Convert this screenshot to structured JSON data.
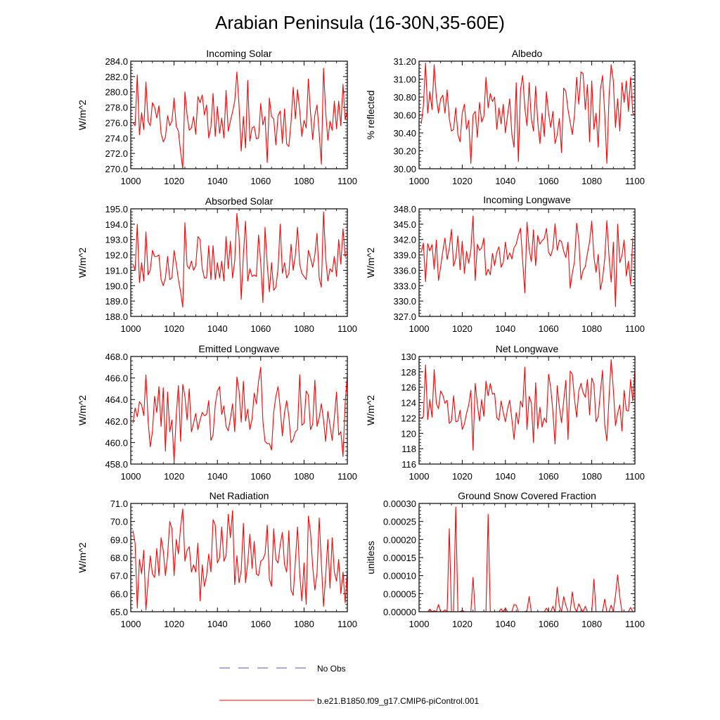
{
  "figure": {
    "title": "Arabian Peninsula (16-30N,35-60E)",
    "line_color": "#ff0000",
    "obs_color": "#5555cc"
  },
  "legend": {
    "obs_label": "No Obs",
    "model_label": "b.e21.B1850.f09_g17.CMIP6-piControl.001"
  },
  "chart_data": [
    {
      "type": "line",
      "title": "Incoming Solar",
      "ylabel": "W/m^2",
      "xlim": [
        1000,
        1100
      ],
      "ylim": [
        270,
        284
      ],
      "xticks": [
        1000,
        1020,
        1040,
        1060,
        1080,
        1100
      ],
      "yticks": [
        270.0,
        272.0,
        274.0,
        276.0,
        278.0,
        280.0,
        282.0,
        284.0
      ],
      "ytick_labels": [
        "270.0",
        "272.0",
        "274.0",
        "276.0",
        "278.0",
        "280.0",
        "282.0",
        "284.0"
      ],
      "x_start": 1001,
      "values": [
        276,
        275.6,
        282.2,
        274.4,
        277.3,
        275.1,
        281.3,
        276.2,
        275.6,
        278.6,
        278.0,
        276.6,
        278.2,
        274.6,
        273.5,
        274.1,
        276.9,
        275.6,
        276.2,
        279.2,
        275.5,
        274.9,
        272.2,
        270.0,
        280.0,
        277.0,
        275.0,
        275.3,
        276.8,
        274.5,
        279.4,
        278.6,
        279.6,
        277.0,
        278.3,
        274.0,
        275.4,
        279.8,
        274.2,
        278.1,
        274.6,
        276.6,
        274.0,
        280.2,
        274.9,
        276.2,
        277.4,
        278.8,
        282.6,
        278.2,
        272.3,
        276.8,
        272.7,
        281.5,
        273.6,
        275.3,
        275.5,
        273.9,
        274.0,
        278.5,
        275.7,
        276.8,
        270.8,
        279.2,
        276.8,
        276.5,
        273.1,
        276.9,
        277.5,
        273.3,
        277.8,
        273.2,
        272.9,
        276.1,
        280.6,
        276.5,
        280.3,
        277.6,
        274.2,
        276.3,
        275.3,
        281.7,
        277.3,
        273.8,
        277.0,
        278.3,
        274.6,
        270.6,
        283.1,
        277.4,
        273.7,
        276.2,
        275.0,
        278.8,
        275.2,
        278.8,
        275.6,
        281.0,
        276.4,
        277.4
      ]
    },
    {
      "type": "line",
      "title": "Albedo",
      "ylabel": "% reflected",
      "xlim": [
        1000,
        1100
      ],
      "ylim": [
        30.0,
        31.2
      ],
      "xticks": [
        1000,
        1020,
        1040,
        1060,
        1080,
        1100
      ],
      "yticks": [
        30.0,
        30.2,
        30.4,
        30.6,
        30.8,
        31.0,
        31.2
      ],
      "ytick_labels": [
        "30.00",
        "30.20",
        "30.40",
        "30.60",
        "30.80",
        "31.00",
        "31.20"
      ],
      "x_start": 1001,
      "values": [
        30.5,
        30.7,
        31.18,
        30.62,
        30.86,
        30.66,
        31.16,
        30.8,
        30.62,
        30.78,
        30.82,
        30.62,
        30.88,
        30.56,
        30.42,
        30.44,
        30.68,
        30.38,
        30.3,
        30.62,
        30.72,
        30.44,
        30.54,
        30.06,
        30.6,
        30.64,
        30.35,
        30.74,
        30.52,
        30.58,
        31.02,
        30.68,
        30.84,
        30.75,
        30.8,
        30.44,
        30.68,
        30.5,
        30.72,
        30.4,
        30.6,
        30.78,
        30.38,
        30.24,
        30.96,
        30.08,
        30.88,
        31.04,
        30.68,
        30.48,
        30.96,
        30.56,
        30.42,
        30.92,
        30.52,
        30.28,
        30.62,
        30.36,
        30.86,
        30.62,
        30.46,
        30.64,
        30.28,
        30.38,
        30.56,
        30.18,
        30.9,
        30.86,
        30.66,
        30.52,
        30.38,
        30.6,
        31.02,
        30.72,
        31.08,
        31.06,
        30.66,
        30.94,
        30.3,
        30.98,
        30.44,
        30.62,
        30.24,
        30.88,
        31.04,
        30.62,
        30.06,
        30.8,
        31.16,
        30.98,
        30.46,
        30.78,
        30.42,
        30.96,
        30.74,
        30.98,
        30.64,
        31.02,
        30.62,
        30.6
      ]
    },
    {
      "type": "line",
      "title": "Absorbed Solar",
      "ylabel": "W/m^2",
      "xlim": [
        1000,
        1100
      ],
      "ylim": [
        188,
        195
      ],
      "xticks": [
        1000,
        1020,
        1040,
        1060,
        1080,
        1100
      ],
      "yticks": [
        188.0,
        189.0,
        190.0,
        191.0,
        192.0,
        193.0,
        194.0,
        195.0
      ],
      "ytick_labels": [
        "188.0",
        "189.0",
        "190.0",
        "191.0",
        "192.0",
        "193.0",
        "194.0",
        "195.0"
      ],
      "x_start": 1001,
      "values": [
        191.4,
        191.0,
        194.0,
        190.2,
        191.5,
        190.3,
        193.5,
        190.7,
        191.0,
        192.3,
        191.9,
        191.9,
        192.0,
        190.4,
        190.0,
        190.5,
        191.9,
        190.4,
        190.5,
        192.3,
        191.4,
        190.4,
        189.6,
        188.6,
        194.1,
        191.3,
        191.1,
        191.6,
        191.0,
        191.3,
        193.2,
        193.0,
        191.1,
        190.5,
        190.5,
        192.6,
        190.4,
        192.6,
        190.4,
        191.5,
        190.5,
        191.6,
        190.3,
        193.2,
        191.1,
        192.9,
        190.5,
        191.6,
        194.7,
        193.1,
        189.1,
        192.0,
        194.2,
        190.3,
        191.1,
        190.6,
        190.7,
        190.6,
        193.3,
        191.5,
        188.9,
        193.8,
        191.4,
        189.6,
        191.5,
        189.7,
        189.9,
        191.1,
        194.0,
        190.8,
        191.5,
        190.5,
        190.8,
        192.7,
        191.0,
        192.0,
        193.8,
        191.4,
        190.8,
        190.6,
        190.4,
        192.3,
        191.8,
        191.2,
        192.0,
        193.4,
        190.5,
        189.9,
        194.8,
        191.8,
        190.3,
        191.1,
        190.9,
        191.9,
        190.6,
        193.0,
        191.4,
        193.7,
        191.9,
        192.1
      ]
    },
    {
      "type": "line",
      "title": "Incoming Longwave",
      "ylabel": "W/m^2",
      "xlim": [
        1000,
        1100
      ],
      "ylim": [
        327,
        348
      ],
      "xticks": [
        1000,
        1020,
        1040,
        1060,
        1080,
        1100
      ],
      "yticks": [
        327.0,
        330.0,
        333.0,
        336.0,
        339.0,
        342.0,
        345.0,
        348.0
      ],
      "ytick_labels": [
        "327.0",
        "330.0",
        "333.0",
        "336.0",
        "339.0",
        "342.0",
        "345.0",
        "348.0"
      ],
      "x_start": 1001,
      "values": [
        339.5,
        341.3,
        333.8,
        341.2,
        339.8,
        341.0,
        336.2,
        341.9,
        334.0,
        336.7,
        339.7,
        342.3,
        338.1,
        340.3,
        344.0,
        336.8,
        338.3,
        342.7,
        336.1,
        341.7,
        335.4,
        339.7,
        337.4,
        340.0,
        346.6,
        334.0,
        341.1,
        339.9,
        340.4,
        342.3,
        335.0,
        336.2,
        335.1,
        339.3,
        336.9,
        339.5,
        340.6,
        336.6,
        337.5,
        341.5,
        338.1,
        339.4,
        338.2,
        340.4,
        341.1,
        342.9,
        344.2,
        337.8,
        331.6,
        345.4,
        340.1,
        337.7,
        343.9,
        336.9,
        342.8,
        341.1,
        341.8,
        342.2,
        344.2,
        339.5,
        338.8,
        340.3,
        345.1,
        339.9,
        341.9,
        341.6,
        339.7,
        338.5,
        341.5,
        332.5,
        335.4,
        337.7,
        345.2,
        341.9,
        334.2,
        336.0,
        336.7,
        339.3,
        341.6,
        345.6,
        338.6,
        335.6,
        339.1,
        332.2,
        334.3,
        338.2,
        345.7,
        338.7,
        333.7,
        341.5,
        328.9,
        345.0,
        337.5,
        338.9,
        341.9,
        334.9,
        337.8,
        333.2,
        342.3
      ]
    },
    {
      "type": "line",
      "title": "Emitted Longwave",
      "ylabel": "W/m^2",
      "xlim": [
        1000,
        1100
      ],
      "ylim": [
        458,
        468
      ],
      "xticks": [
        1000,
        1020,
        1040,
        1060,
        1080,
        1100
      ],
      "yticks": [
        458.0,
        460.0,
        462.0,
        464.0,
        466.0,
        468.0
      ],
      "ytick_labels": [
        "458.0",
        "460.0",
        "462.0",
        "464.0",
        "466.0",
        "468.0"
      ],
      "x_start": 1001,
      "values": [
        461.8,
        463.2,
        462.4,
        463.8,
        463.5,
        462.5,
        466.3,
        462.0,
        459.6,
        461.0,
        464.3,
        462.8,
        465.2,
        461.5,
        465.1,
        459.2,
        464.7,
        461.0,
        462.1,
        458.2,
        462.6,
        465.3,
        460.1,
        465.4,
        464.3,
        462.1,
        465.0,
        461.0,
        461.8,
        462.7,
        461.2,
        462.1,
        462.8,
        462.5,
        462.6,
        463.9,
        460.2,
        460.7,
        463.5,
        464.8,
        465.2,
        462.6,
        463.4,
        461.5,
        461.1,
        462.2,
        463.6,
        461.0,
        466.1,
        464.8,
        461.9,
        465.7,
        462.0,
        463.1,
        461.2,
        462.2,
        464.6,
        463.6,
        465.7,
        467.0,
        462.0,
        460.1,
        459.9,
        459.9,
        459.3,
        462.8,
        464.3,
        465.2,
        463.2,
        460.6,
        462.8,
        463.9,
        462.4,
        460.0,
        460.3,
        461.0,
        461.2,
        466.3,
        461.6,
        461.8,
        464.8,
        464.4,
        461.2,
        461.7,
        465.8,
        461.5,
        462.3,
        463.6,
        462.1,
        460.1,
        462.9,
        461.6,
        460.2,
        462.3,
        464.7,
        460.7,
        461.0,
        458.7,
        463.7,
        466.3
      ]
    },
    {
      "type": "line",
      "title": "Net Longwave",
      "ylabel": "W/m^2",
      "xlim": [
        1000,
        1100
      ],
      "ylim": [
        116,
        130
      ],
      "xticks": [
        1000,
        1020,
        1040,
        1060,
        1080,
        1100
      ],
      "yticks": [
        116,
        118,
        120,
        122,
        124,
        126,
        128,
        130
      ],
      "ytick_labels": [
        "116",
        "118",
        "120",
        "122",
        "124",
        "126",
        "128",
        "130"
      ],
      "x_start": 1001,
      "values": [
        121.9,
        122.2,
        128.9,
        121.8,
        124.4,
        122.1,
        128.3,
        123.9,
        123.2,
        125.5,
        125.0,
        123.9,
        124.3,
        121.3,
        121.6,
        124.9,
        121.5,
        121.6,
        123.0,
        120.5,
        121.2,
        122.6,
        123.7,
        125.6,
        117.8,
        126.5,
        123.8,
        121.6,
        124.4,
        122.2,
        126.8,
        124.9,
        126.5,
        125.1,
        125.2,
        122.0,
        121.7,
        124.2,
        122.7,
        121.5,
        123.2,
        124.3,
        121.8,
        119.2,
        122.7,
        121.2,
        124.2,
        123.4,
        128.6,
        120.5,
        124.8,
        124.0,
        118.8,
        126.6,
        120.6,
        123.4,
        120.8,
        122.0,
        121.4,
        127.7,
        125.9,
        122.8,
        118.6,
        126.2,
        123.4,
        121.4,
        124.2,
        126.9,
        119.2,
        128.1,
        127.7,
        124.5,
        122.1,
        125.5,
        126.5,
        125.3,
        124.7,
        127.0,
        122.4,
        127.2,
        126.4,
        121.5,
        122.2,
        125.4,
        128.2,
        121.1,
        119.0,
        124.6,
        129.6,
        125.7,
        121.0,
        122.6,
        123.7,
        120.3,
        125.6,
        123.0,
        122.9,
        127.0,
        124.2,
        128.2
      ]
    },
    {
      "type": "line",
      "title": "Net Radiation",
      "ylabel": "W/m^2",
      "xlim": [
        1000,
        1100
      ],
      "ylim": [
        65,
        71
      ],
      "xticks": [
        1000,
        1020,
        1040,
        1060,
        1080,
        1100
      ],
      "yticks": [
        65.0,
        66.0,
        67.0,
        68.0,
        69.0,
        70.0,
        71.0
      ],
      "ytick_labels": [
        "65.0",
        "66.0",
        "67.0",
        "68.0",
        "69.0",
        "70.0",
        "71.0"
      ],
      "x_start": 1001,
      "values": [
        69.5,
        68.8,
        65.2,
        67.9,
        67.1,
        68.4,
        65.1,
        66.7,
        68.1,
        67.1,
        66.9,
        68.5,
        67.0,
        69.1,
        68.4,
        67.0,
        68.1,
        70.0,
        69.6,
        67.0,
        69.0,
        68.2,
        69.7,
        70.7,
        67.8,
        68.4,
        68.6,
        67.2,
        67.6,
        67.2,
        68.8,
        65.6,
        67.6,
        66.4,
        67.0,
        68.2,
        67.2,
        70.1,
        69.8,
        67.7,
        68.0,
        69.7,
        67.8,
        68.1,
        70.4,
        69.1,
        70.6,
        66.5,
        68.1,
        66.6,
        67.3,
        69.9,
        66.6,
        67.7,
        69.3,
        67.4,
        68.9,
        67.1,
        67.0,
        67.8,
        67.9,
        68.2,
        69.8,
        66.8,
        66.4,
        69.6,
        67.9,
        67.7,
        68.7,
        69.4,
        67.6,
        67.2,
        69.5,
        66.2,
        65.9,
        67.8,
        69.7,
        67.1,
        65.6,
        67.7,
        65.4,
        70.3,
        69.4,
        67.5,
        66.2,
        67.1,
        70.2,
        67.7,
        65.3,
        67.0,
        69.0,
        66.3,
        69.1,
        67.2,
        66.7,
        67.9,
        66.0,
        67.2,
        65.5,
        67.3
      ]
    },
    {
      "type": "line",
      "title": "Ground Snow Covered Fraction",
      "ylabel": "unitless",
      "xlim": [
        1000,
        1100
      ],
      "ylim": [
        0,
        0.0003
      ],
      "xticks": [
        1000,
        1020,
        1040,
        1060,
        1080,
        1100
      ],
      "yticks": [
        0,
        5e-05,
        0.0001,
        0.00015,
        0.0002,
        0.00025,
        0.0003
      ],
      "ytick_labels": [
        "0.00000",
        "0.00005",
        "0.00010",
        "0.00015",
        "0.00020",
        "0.00025",
        "0.00030"
      ],
      "x_start": 1001,
      "values": [
        0,
        0,
        0,
        0,
        7e-06,
        0,
        3e-06,
        0,
        2e-05,
        0,
        0,
        5e-06,
        0,
        0.00023,
        0,
        0,
        0.00029,
        0,
        0,
        4e-06,
        0,
        0,
        0,
        0,
        9.5e-05,
        0,
        0,
        0,
        0,
        0,
        0,
        0.00027,
        0,
        0,
        0,
        0,
        0,
        8e-06,
        0,
        1e-05,
        0,
        0,
        0,
        2e-05,
        1.8e-05,
        0,
        0,
        0,
        0,
        3e-06,
        4.2e-05,
        0,
        0,
        0,
        0,
        0,
        0,
        0,
        1e-05,
        0,
        0,
        1.5e-05,
        0,
        6.8e-05,
        1.5e-05,
        0,
        4.2e-05,
        1.8e-05,
        0,
        0,
        5.5e-05,
        1.2e-05,
        0,
        2.2e-05,
        8e-06,
        0,
        1.5e-05,
        0,
        0,
        0,
        9e-05,
        0,
        0,
        0,
        0,
        3.5e-05,
        0,
        0,
        1.8e-05,
        0,
        4.5e-05,
        0.000102,
        4e-05,
        0,
        0,
        0,
        0,
        1.2e-05,
        0,
        0
      ]
    }
  ]
}
